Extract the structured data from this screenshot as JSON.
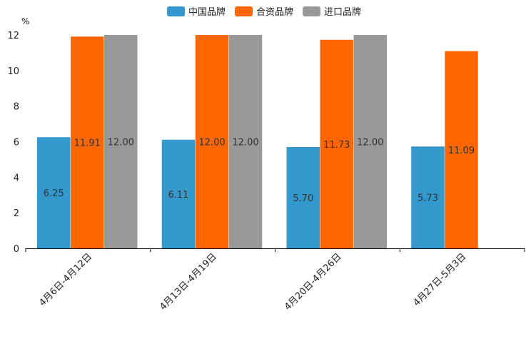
{
  "chart_data": {
    "type": "bar",
    "title": "",
    "xlabel": "",
    "ylabel": "%",
    "ylim": [
      0,
      12
    ],
    "yticks": [
      0,
      2,
      4,
      6,
      8,
      10,
      12
    ],
    "categories": [
      "4月6日-4月12日",
      "4月13日-4月19日",
      "4月20日-4月26日",
      "4月27日-5月3日"
    ],
    "series": [
      {
        "name": "中国品牌",
        "color": "#3399cc",
        "values": [
          6.25,
          6.11,
          5.7,
          5.73
        ],
        "labels": [
          "6.25",
          "6.11",
          "5.70",
          "5.73"
        ]
      },
      {
        "name": "合资品牌",
        "color": "#ff6600",
        "values": [
          11.91,
          12.0,
          11.73,
          11.09
        ],
        "labels": [
          "11.91",
          "12.00",
          "11.73",
          "11.09"
        ]
      },
      {
        "name": "进口品牌",
        "color": "#999999",
        "values": [
          12.0,
          12.0,
          12.0,
          null
        ],
        "labels": [
          "12.00",
          "12.00",
          "12.00",
          ""
        ]
      }
    ],
    "legend_position": "top-center",
    "grid": false
  }
}
